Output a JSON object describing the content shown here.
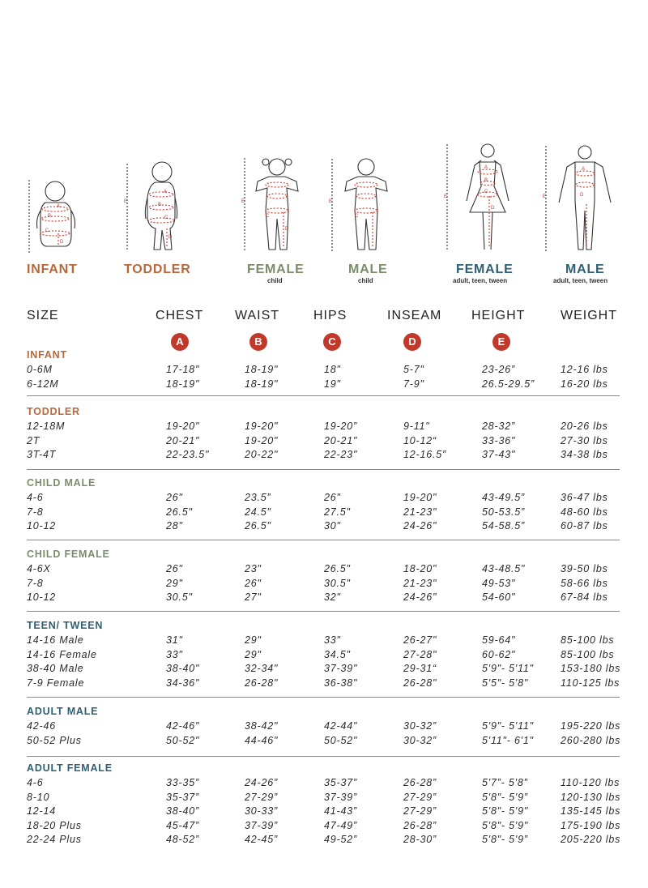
{
  "figures": [
    {
      "label": "INFANT",
      "sub": "",
      "color": "#b8673a"
    },
    {
      "label": "TODDLER",
      "sub": "",
      "color": "#b8673a"
    },
    {
      "label": "FEMALE",
      "sub": "child",
      "color": "#7b8d6b"
    },
    {
      "label": "MALE",
      "sub": "child",
      "color": "#7b8d6b"
    },
    {
      "label": "FEMALE",
      "sub": "adult, teen, tween",
      "color": "#2e5f73"
    },
    {
      "label": "MALE",
      "sub": "adult, teen, tween",
      "color": "#2e5f73"
    }
  ],
  "figure_marks": {
    "a": "A",
    "b": "B",
    "c": "C",
    "d": "D",
    "e": "E"
  },
  "headers": [
    "SIZE",
    "CHEST",
    "WAIST",
    "HIPS",
    "INSEAM",
    "HEIGHT",
    "WEIGHT"
  ],
  "badges": [
    "A",
    "B",
    "C",
    "D",
    "E"
  ],
  "badge_color": "#c0392b",
  "sections": [
    {
      "title": "INFANT",
      "color": "#b8673a",
      "rows": [
        [
          "0-6M",
          "17-18\"",
          "18-19\"",
          "18\"",
          "5-7\"",
          "23-26”",
          "12-16 lbs"
        ],
        [
          "6-12M",
          "18-19\"",
          "18-19\"",
          "19\"",
          "7-9\"",
          "26.5-29.5”",
          "16-20 lbs"
        ]
      ]
    },
    {
      "title": "TODDLER",
      "color": "#b8673a",
      "rows": [
        [
          "12-18M",
          "19-20\"",
          "19-20\"",
          "19-20”",
          "9-11\"",
          "28-32”",
          "20-26 lbs"
        ],
        [
          "2T",
          "20-21\"",
          "19-20\"",
          "20-21\"",
          "10-12“",
          "33-36\"",
          "27-30 lbs"
        ],
        [
          "3T-4T",
          "22-23.5\"",
          "20-22\"",
          "22-23\"",
          "12-16.5”",
          "37-43\"",
          "34-38 lbs"
        ]
      ]
    },
    {
      "title": "CHILD MALE",
      "color": "#7b8d6b",
      "rows": [
        [
          "4-6",
          "26\"",
          "23.5”",
          "26\"",
          "19-20\"",
          "43-49.5”",
          "36-47 lbs"
        ],
        [
          "7-8",
          "26.5\"",
          "24.5\"",
          "27.5\"",
          "21-23\"",
          "50-53.5”",
          "48-60 lbs"
        ],
        [
          "10-12",
          "28\"",
          "26.5\"",
          "30\"",
          "24-26\"",
          "54-58.5”",
          "60-87 lbs"
        ]
      ]
    },
    {
      "title": "CHILD FEMALE",
      "color": "#7b8d6b",
      "rows": [
        [
          "4-6X",
          "26\"",
          "23\"",
          "26.5\"",
          "18-20\"",
          "43-48.5\"",
          "39-50 lbs"
        ],
        [
          "7-8",
          "29\"",
          "26\"",
          "30.5\"",
          "21-23\"",
          "49-53\"",
          "58-66 lbs"
        ],
        [
          "10-12",
          "30.5\"",
          "27\"",
          "32\"",
          "24-26\"",
          "54-60\"",
          "67-84 lbs"
        ]
      ]
    },
    {
      "title": "TEEN/ TWEEN",
      "color": "#2e5f73",
      "rows": [
        [
          "14-16 Male",
          "31\"",
          "29\"",
          "33\"",
          "26-27\"",
          "59-64\"",
          "85-100 lbs"
        ],
        [
          "14-16 Female",
          "33\"",
          "29\"",
          "34.5\"",
          "27-28\"",
          "60-62\"",
          "85-100 lbs"
        ],
        [
          "38-40 Male",
          "38-40\"",
          "32-34\"",
          "37-39\"",
          "29-31“",
          "5'9\"- 5'11\"",
          "153-180 lbs"
        ],
        [
          "7-9 Female",
          "34-36\"",
          "26-28\"",
          "36-38\"",
          "26-28\"",
          "5'5\"- 5'8\"",
          "110-125 lbs"
        ]
      ]
    },
    {
      "title": "ADULT MALE",
      "color": "#2e5f73",
      "rows": [
        [
          "42-46",
          "42-46\"",
          "38-42\"",
          "42-44\"",
          "30-32”",
          "5'9\"- 5'11\"",
          "195-220 lbs"
        ],
        [
          "50-52 Plus",
          "50-52\"",
          "44-46\"",
          "50-52\"",
          "30-32”",
          "5'11\"- 6'1\"",
          "260-280 lbs"
        ]
      ]
    },
    {
      "title": "ADULT FEMALE",
      "color": "#2e5f73",
      "rows": [
        [
          "4-6",
          "33-35”",
          "24-26”",
          "35-37”",
          "26-28”",
          "5'7”- 5'8”",
          "110-120 lbs"
        ],
        [
          "8-10",
          "35-37”",
          "27-29”",
          "37-39”",
          "27-29”",
          "5'8\"- 5'9”",
          "120-130 lbs"
        ],
        [
          "12-14",
          "38-40”",
          "30-33”",
          "41-43”",
          "27-29”",
          "5'8\"- 5'9\"",
          "135-145 lbs"
        ],
        [
          "18-20 Plus",
          "45-47”",
          "37-39”",
          "47-49”",
          "26-28”",
          "5'8\"- 5'9\"",
          "175-190 lbs"
        ],
        [
          "22-24 Plus",
          "48-52”",
          "42-45”",
          "49-52”",
          "28-30”",
          "5'8\"- 5'9”",
          "205-220 lbs"
        ]
      ]
    }
  ]
}
